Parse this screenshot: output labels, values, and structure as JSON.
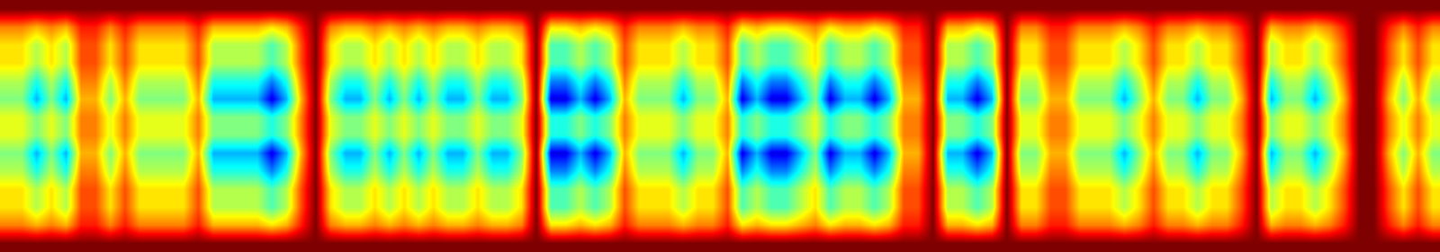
{
  "chart_data": {
    "type": "heatmap",
    "xlim": [
      -0.5,
      97.5
    ],
    "ylim": [
      13.5,
      -0.5
    ],
    "zlim": [
      0,
      1
    ],
    "tick_labels": false,
    "cells": [
      [
        1,
        0.75,
        0.65,
        0.65,
        0.55,
        0.5,
        0.6,
        0.6,
        0.5,
        0.55,
        0.65,
        0.65,
        0.75,
        1
      ],
      [
        1,
        0.75,
        0.65,
        0.65,
        0.55,
        0.5,
        0.6,
        0.6,
        0.5,
        0.55,
        0.65,
        0.65,
        0.75,
        1
      ],
      [
        1,
        0.7,
        0.55,
        0.55,
        0.4,
        0.3,
        0.5,
        0.5,
        0.3,
        0.4,
        0.55,
        0.55,
        0.7,
        1
      ],
      [
        1,
        0.75,
        0.65,
        0.65,
        0.55,
        0.5,
        0.6,
        0.6,
        0.5,
        0.55,
        0.65,
        0.65,
        0.75,
        1
      ],
      [
        1,
        0.7,
        0.55,
        0.55,
        0.4,
        0.3,
        0.5,
        0.5,
        0.3,
        0.4,
        0.55,
        0.55,
        0.7,
        1
      ],
      [
        1,
        0.85,
        0.8,
        0.8,
        0.75,
        0.7,
        0.75,
        0.75,
        0.7,
        0.75,
        0.8,
        0.8,
        0.85,
        1
      ],
      [
        1,
        0.85,
        0.8,
        0.8,
        0.75,
        0.7,
        0.75,
        0.75,
        0.7,
        0.75,
        0.8,
        0.8,
        0.85,
        1
      ],
      [
        1,
        0.75,
        0.65,
        0.65,
        0.55,
        0.5,
        0.6,
        0.6,
        0.5,
        0.55,
        0.65,
        0.65,
        0.75,
        1
      ],
      [
        1,
        0.85,
        0.8,
        0.8,
        0.75,
        0.7,
        0.75,
        0.75,
        0.7,
        0.75,
        0.8,
        0.8,
        0.85,
        1
      ],
      [
        1,
        0.75,
        0.65,
        0.65,
        0.55,
        0.5,
        0.6,
        0.6,
        0.5,
        0.55,
        0.65,
        0.65,
        0.75,
        1
      ],
      [
        1,
        0.75,
        0.65,
        0.65,
        0.55,
        0.5,
        0.6,
        0.6,
        0.5,
        0.55,
        0.65,
        0.65,
        0.75,
        1
      ],
      [
        1,
        0.75,
        0.65,
        0.65,
        0.55,
        0.5,
        0.6,
        0.6,
        0.5,
        0.55,
        0.65,
        0.65,
        0.75,
        1
      ],
      [
        1,
        0.75,
        0.65,
        0.65,
        0.55,
        0.5,
        0.6,
        0.6,
        0.5,
        0.55,
        0.65,
        0.65,
        0.75,
        1
      ],
      [
        1,
        0.85,
        0.8,
        0.8,
        0.75,
        0.7,
        0.75,
        0.75,
        0.7,
        0.75,
        0.8,
        0.8,
        0.85,
        1
      ],
      [
        1,
        0.7,
        0.55,
        0.55,
        0.4,
        0.3,
        0.5,
        0.5,
        0.3,
        0.4,
        0.55,
        0.55,
        0.7,
        1
      ],
      [
        1,
        0.7,
        0.55,
        0.55,
        0.4,
        0.3,
        0.5,
        0.5,
        0.3,
        0.4,
        0.55,
        0.55,
        0.7,
        1
      ],
      [
        1,
        0.7,
        0.55,
        0.55,
        0.4,
        0.3,
        0.5,
        0.5,
        0.3,
        0.4,
        0.55,
        0.55,
        0.7,
        1
      ],
      [
        1,
        0.7,
        0.55,
        0.55,
        0.4,
        0.3,
        0.5,
        0.5,
        0.3,
        0.4,
        0.55,
        0.55,
        0.7,
        1
      ],
      [
        1,
        0.65,
        0.45,
        0.45,
        0.25,
        0.1,
        0.4,
        0.4,
        0.1,
        0.25,
        0.45,
        0.45,
        0.65,
        1
      ],
      [
        1,
        0.7,
        0.55,
        0.55,
        0.4,
        0.3,
        0.5,
        0.5,
        0.3,
        0.4,
        0.55,
        0.55,
        0.7,
        1
      ],
      [
        1,
        0.85,
        0.8,
        0.8,
        0.75,
        0.7,
        0.75,
        0.75,
        0.7,
        0.75,
        0.8,
        0.8,
        0.85,
        1
      ],
      [
        1,
        1,
        1,
        1,
        1,
        1,
        1,
        1,
        1,
        1,
        1,
        1,
        1,
        1
      ],
      [
        1,
        0.75,
        0.65,
        0.65,
        0.55,
        0.5,
        0.6,
        0.6,
        0.5,
        0.55,
        0.65,
        0.65,
        0.75,
        1
      ],
      [
        1,
        0.7,
        0.55,
        0.55,
        0.4,
        0.3,
        0.5,
        0.5,
        0.3,
        0.4,
        0.55,
        0.55,
        0.7,
        1
      ],
      [
        1,
        0.7,
        0.55,
        0.55,
        0.4,
        0.3,
        0.5,
        0.5,
        0.3,
        0.4,
        0.55,
        0.55,
        0.7,
        1
      ],
      [
        1,
        0.75,
        0.65,
        0.65,
        0.55,
        0.5,
        0.6,
        0.6,
        0.5,
        0.55,
        0.65,
        0.65,
        0.75,
        1
      ],
      [
        1,
        0.7,
        0.55,
        0.55,
        0.4,
        0.3,
        0.5,
        0.5,
        0.3,
        0.4,
        0.55,
        0.55,
        0.7,
        1
      ],
      [
        1,
        0.75,
        0.65,
        0.65,
        0.55,
        0.5,
        0.6,
        0.6,
        0.5,
        0.55,
        0.65,
        0.65,
        0.75,
        1
      ],
      [
        1,
        0.7,
        0.55,
        0.55,
        0.4,
        0.3,
        0.5,
        0.5,
        0.3,
        0.4,
        0.55,
        0.55,
        0.7,
        1
      ],
      [
        1,
        0.75,
        0.65,
        0.65,
        0.55,
        0.5,
        0.6,
        0.6,
        0.5,
        0.55,
        0.65,
        0.65,
        0.75,
        1
      ],
      [
        1,
        0.7,
        0.55,
        0.55,
        0.4,
        0.3,
        0.5,
        0.5,
        0.3,
        0.4,
        0.55,
        0.55,
        0.7,
        1
      ],
      [
        1,
        0.7,
        0.55,
        0.55,
        0.4,
        0.3,
        0.5,
        0.5,
        0.3,
        0.4,
        0.55,
        0.55,
        0.7,
        1
      ],
      [
        1,
        0.75,
        0.65,
        0.65,
        0.55,
        0.5,
        0.6,
        0.6,
        0.5,
        0.55,
        0.65,
        0.65,
        0.75,
        1
      ],
      [
        1,
        0.7,
        0.55,
        0.55,
        0.4,
        0.3,
        0.5,
        0.5,
        0.3,
        0.4,
        0.55,
        0.55,
        0.7,
        1
      ],
      [
        1,
        0.7,
        0.55,
        0.55,
        0.4,
        0.3,
        0.5,
        0.5,
        0.3,
        0.4,
        0.55,
        0.55,
        0.7,
        1
      ],
      [
        1,
        0.75,
        0.65,
        0.65,
        0.55,
        0.5,
        0.6,
        0.6,
        0.5,
        0.55,
        0.65,
        0.65,
        0.75,
        1
      ],
      [
        1,
        1,
        1,
        1,
        1,
        1,
        1,
        1,
        1,
        1,
        1,
        1,
        1,
        1
      ],
      [
        1,
        0.65,
        0.45,
        0.45,
        0.25,
        0.1,
        0.4,
        0.4,
        0.1,
        0.25,
        0.45,
        0.45,
        0.65,
        1
      ],
      [
        1,
        0.65,
        0.45,
        0.45,
        0.25,
        0.1,
        0.4,
        0.4,
        0.1,
        0.25,
        0.45,
        0.45,
        0.65,
        1
      ],
      [
        1,
        0.7,
        0.55,
        0.55,
        0.4,
        0.3,
        0.5,
        0.5,
        0.3,
        0.4,
        0.55,
        0.55,
        0.7,
        1
      ],
      [
        1,
        0.65,
        0.45,
        0.45,
        0.25,
        0.1,
        0.4,
        0.4,
        0.1,
        0.25,
        0.45,
        0.45,
        0.65,
        1
      ],
      [
        1,
        0.7,
        0.55,
        0.55,
        0.4,
        0.3,
        0.5,
        0.5,
        0.3,
        0.4,
        0.55,
        0.55,
        0.7,
        1
      ],
      [
        1,
        0.85,
        0.8,
        0.8,
        0.75,
        0.7,
        0.75,
        0.75,
        0.7,
        0.75,
        0.8,
        0.8,
        0.85,
        1
      ],
      [
        1,
        0.75,
        0.65,
        0.65,
        0.55,
        0.5,
        0.6,
        0.6,
        0.5,
        0.55,
        0.65,
        0.65,
        0.75,
        1
      ],
      [
        1,
        0.75,
        0.65,
        0.65,
        0.55,
        0.5,
        0.6,
        0.6,
        0.5,
        0.55,
        0.65,
        0.65,
        0.75,
        1
      ],
      [
        1,
        0.75,
        0.65,
        0.65,
        0.55,
        0.5,
        0.6,
        0.6,
        0.5,
        0.55,
        0.65,
        0.65,
        0.75,
        1
      ],
      [
        1,
        0.7,
        0.55,
        0.55,
        0.4,
        0.3,
        0.5,
        0.5,
        0.3,
        0.4,
        0.55,
        0.55,
        0.7,
        1
      ],
      [
        1,
        0.75,
        0.65,
        0.65,
        0.55,
        0.5,
        0.6,
        0.6,
        0.5,
        0.55,
        0.65,
        0.65,
        0.75,
        1
      ],
      [
        1,
        0.75,
        0.65,
        0.65,
        0.55,
        0.5,
        0.6,
        0.6,
        0.5,
        0.55,
        0.65,
        0.65,
        0.75,
        1
      ],
      [
        1,
        0.85,
        0.8,
        0.8,
        0.75,
        0.7,
        0.75,
        0.75,
        0.7,
        0.75,
        0.8,
        0.8,
        0.85,
        1
      ],
      [
        1,
        0.65,
        0.45,
        0.45,
        0.25,
        0.1,
        0.4,
        0.4,
        0.1,
        0.25,
        0.45,
        0.45,
        0.65,
        1
      ],
      [
        1,
        0.7,
        0.55,
        0.55,
        0.4,
        0.3,
        0.5,
        0.5,
        0.3,
        0.4,
        0.55,
        0.55,
        0.7,
        1
      ],
      [
        1,
        0.65,
        0.45,
        0.45,
        0.25,
        0.1,
        0.4,
        0.4,
        0.1,
        0.25,
        0.45,
        0.45,
        0.65,
        1
      ],
      [
        1,
        0.65,
        0.45,
        0.45,
        0.25,
        0.1,
        0.4,
        0.4,
        0.1,
        0.25,
        0.45,
        0.45,
        0.65,
        1
      ],
      [
        1,
        0.7,
        0.55,
        0.55,
        0.4,
        0.3,
        0.5,
        0.5,
        0.3,
        0.4,
        0.55,
        0.55,
        0.7,
        1
      ],
      [
        1,
        0.75,
        0.65,
        0.65,
        0.55,
        0.5,
        0.6,
        0.6,
        0.5,
        0.55,
        0.65,
        0.65,
        0.75,
        1
      ],
      [
        1,
        0.65,
        0.45,
        0.45,
        0.25,
        0.1,
        0.4,
        0.4,
        0.1,
        0.25,
        0.45,
        0.45,
        0.65,
        1
      ],
      [
        1,
        0.7,
        0.55,
        0.55,
        0.4,
        0.3,
        0.5,
        0.5,
        0.3,
        0.4,
        0.55,
        0.55,
        0.7,
        1
      ],
      [
        1,
        0.7,
        0.55,
        0.55,
        0.4,
        0.3,
        0.5,
        0.5,
        0.3,
        0.4,
        0.55,
        0.55,
        0.7,
        1
      ],
      [
        1,
        0.65,
        0.45,
        0.45,
        0.25,
        0.1,
        0.4,
        0.4,
        0.1,
        0.25,
        0.45,
        0.45,
        0.65,
        1
      ],
      [
        1,
        0.7,
        0.55,
        0.55,
        0.4,
        0.3,
        0.5,
        0.5,
        0.3,
        0.4,
        0.55,
        0.55,
        0.7,
        1
      ],
      [
        1,
        0.85,
        0.8,
        0.8,
        0.75,
        0.7,
        0.75,
        0.75,
        0.7,
        0.75,
        0.8,
        0.8,
        0.85,
        1
      ],
      [
        1,
        0.85,
        0.8,
        0.8,
        0.75,
        0.7,
        0.75,
        0.75,
        0.7,
        0.75,
        0.8,
        0.8,
        0.85,
        1
      ],
      [
        1,
        1,
        1,
        1,
        1,
        1,
        1,
        1,
        1,
        1,
        1,
        1,
        1,
        1
      ],
      [
        1,
        0.7,
        0.55,
        0.55,
        0.4,
        0.3,
        0.5,
        0.5,
        0.3,
        0.4,
        0.55,
        0.55,
        0.7,
        1
      ],
      [
        1,
        0.7,
        0.55,
        0.55,
        0.4,
        0.3,
        0.5,
        0.5,
        0.3,
        0.4,
        0.55,
        0.55,
        0.7,
        1
      ],
      [
        1,
        0.65,
        0.45,
        0.45,
        0.25,
        0.1,
        0.4,
        0.4,
        0.1,
        0.25,
        0.45,
        0.45,
        0.65,
        1
      ],
      [
        1,
        0.7,
        0.55,
        0.55,
        0.4,
        0.3,
        0.5,
        0.5,
        0.3,
        0.4,
        0.55,
        0.55,
        0.7,
        1
      ],
      [
        1,
        1,
        1,
        1,
        1,
        1,
        1,
        1,
        1,
        1,
        1,
        1,
        1,
        1
      ],
      [
        1,
        0.75,
        0.65,
        0.65,
        0.55,
        0.5,
        0.6,
        0.6,
        0.5,
        0.55,
        0.65,
        0.65,
        0.75,
        1
      ],
      [
        1,
        0.75,
        0.65,
        0.65,
        0.55,
        0.5,
        0.6,
        0.6,
        0.5,
        0.55,
        0.65,
        0.65,
        0.75,
        1
      ],
      [
        1,
        0.85,
        0.8,
        0.8,
        0.75,
        0.7,
        0.75,
        0.75,
        0.7,
        0.75,
        0.8,
        0.8,
        0.85,
        1
      ],
      [
        1,
        0.85,
        0.8,
        0.8,
        0.75,
        0.7,
        0.75,
        0.75,
        0.7,
        0.75,
        0.8,
        0.8,
        0.85,
        1
      ],
      [
        1,
        0.75,
        0.65,
        0.65,
        0.55,
        0.5,
        0.6,
        0.6,
        0.5,
        0.55,
        0.65,
        0.65,
        0.75,
        1
      ],
      [
        1,
        0.75,
        0.65,
        0.65,
        0.55,
        0.5,
        0.6,
        0.6,
        0.5,
        0.55,
        0.65,
        0.65,
        0.75,
        1
      ],
      [
        1,
        0.75,
        0.65,
        0.65,
        0.55,
        0.5,
        0.6,
        0.6,
        0.5,
        0.55,
        0.65,
        0.65,
        0.75,
        1
      ],
      [
        1,
        0.7,
        0.55,
        0.55,
        0.4,
        0.3,
        0.5,
        0.5,
        0.3,
        0.4,
        0.55,
        0.55,
        0.7,
        1
      ],
      [
        1,
        0.75,
        0.65,
        0.65,
        0.55,
        0.5,
        0.6,
        0.6,
        0.5,
        0.55,
        0.65,
        0.65,
        0.75,
        1
      ],
      [
        1,
        0.85,
        0.8,
        0.8,
        0.75,
        0.7,
        0.75,
        0.75,
        0.7,
        0.75,
        0.8,
        0.8,
        0.85,
        1
      ],
      [
        1,
        0.75,
        0.65,
        0.65,
        0.55,
        0.5,
        0.6,
        0.6,
        0.5,
        0.55,
        0.65,
        0.65,
        0.75,
        1
      ],
      [
        1,
        0.75,
        0.65,
        0.65,
        0.55,
        0.5,
        0.6,
        0.6,
        0.5,
        0.55,
        0.65,
        0.65,
        0.75,
        1
      ],
      [
        1,
        0.7,
        0.55,
        0.55,
        0.4,
        0.3,
        0.5,
        0.5,
        0.3,
        0.4,
        0.55,
        0.55,
        0.7,
        1
      ],
      [
        1,
        0.75,
        0.65,
        0.65,
        0.55,
        0.5,
        0.6,
        0.6,
        0.5,
        0.55,
        0.65,
        0.65,
        0.75,
        1
      ],
      [
        1,
        0.75,
        0.65,
        0.65,
        0.55,
        0.5,
        0.6,
        0.6,
        0.5,
        0.55,
        0.65,
        0.65,
        0.75,
        1
      ],
      [
        1,
        0.85,
        0.8,
        0.8,
        0.75,
        0.7,
        0.75,
        0.75,
        0.7,
        0.75,
        0.8,
        0.8,
        0.85,
        1
      ],
      [
        1,
        1,
        1,
        1,
        1,
        1,
        1,
        1,
        1,
        1,
        1,
        1,
        1,
        1
      ],
      [
        1,
        0.7,
        0.55,
        0.55,
        0.4,
        0.3,
        0.5,
        0.5,
        0.3,
        0.4,
        0.55,
        0.55,
        0.7,
        1
      ],
      [
        1,
        0.75,
        0.65,
        0.65,
        0.55,
        0.5,
        0.6,
        0.6,
        0.5,
        0.55,
        0.65,
        0.65,
        0.75,
        1
      ],
      [
        1,
        0.75,
        0.65,
        0.65,
        0.55,
        0.5,
        0.6,
        0.6,
        0.5,
        0.55,
        0.65,
        0.65,
        0.75,
        1
      ],
      [
        1,
        0.7,
        0.55,
        0.55,
        0.4,
        0.3,
        0.5,
        0.5,
        0.3,
        0.4,
        0.55,
        0.55,
        0.7,
        1
      ],
      [
        1,
        0.75,
        0.65,
        0.65,
        0.55,
        0.5,
        0.6,
        0.6,
        0.5,
        0.55,
        0.65,
        0.65,
        0.75,
        1
      ],
      [
        1,
        0.85,
        0.8,
        0.8,
        0.75,
        0.7,
        0.75,
        0.75,
        0.7,
        0.75,
        0.8,
        0.8,
        0.85,
        1
      ],
      [
        1,
        1,
        1,
        1,
        1,
        1,
        1,
        1,
        1,
        1,
        1,
        1,
        1,
        1
      ],
      [
        1,
        1,
        1,
        1,
        1,
        1,
        1,
        1,
        1,
        1,
        1,
        1,
        1,
        1
      ],
      [
        1,
        0.85,
        0.8,
        0.8,
        0.75,
        0.7,
        0.75,
        0.75,
        0.7,
        0.75,
        0.8,
        0.8,
        0.85,
        1
      ],
      [
        1,
        0.75,
        0.65,
        0.65,
        0.55,
        0.5,
        0.6,
        0.6,
        0.5,
        0.55,
        0.65,
        0.65,
        0.75,
        1
      ],
      [
        1,
        0.85,
        0.8,
        0.8,
        0.75,
        0.7,
        0.75,
        0.75,
        0.7,
        0.75,
        0.8,
        0.8,
        0.85,
        1
      ],
      [
        1,
        0.75,
        0.65,
        0.65,
        0.55,
        0.5,
        0.6,
        0.6,
        0.5,
        0.55,
        0.65,
        0.65,
        0.75,
        1
      ]
    ]
  }
}
